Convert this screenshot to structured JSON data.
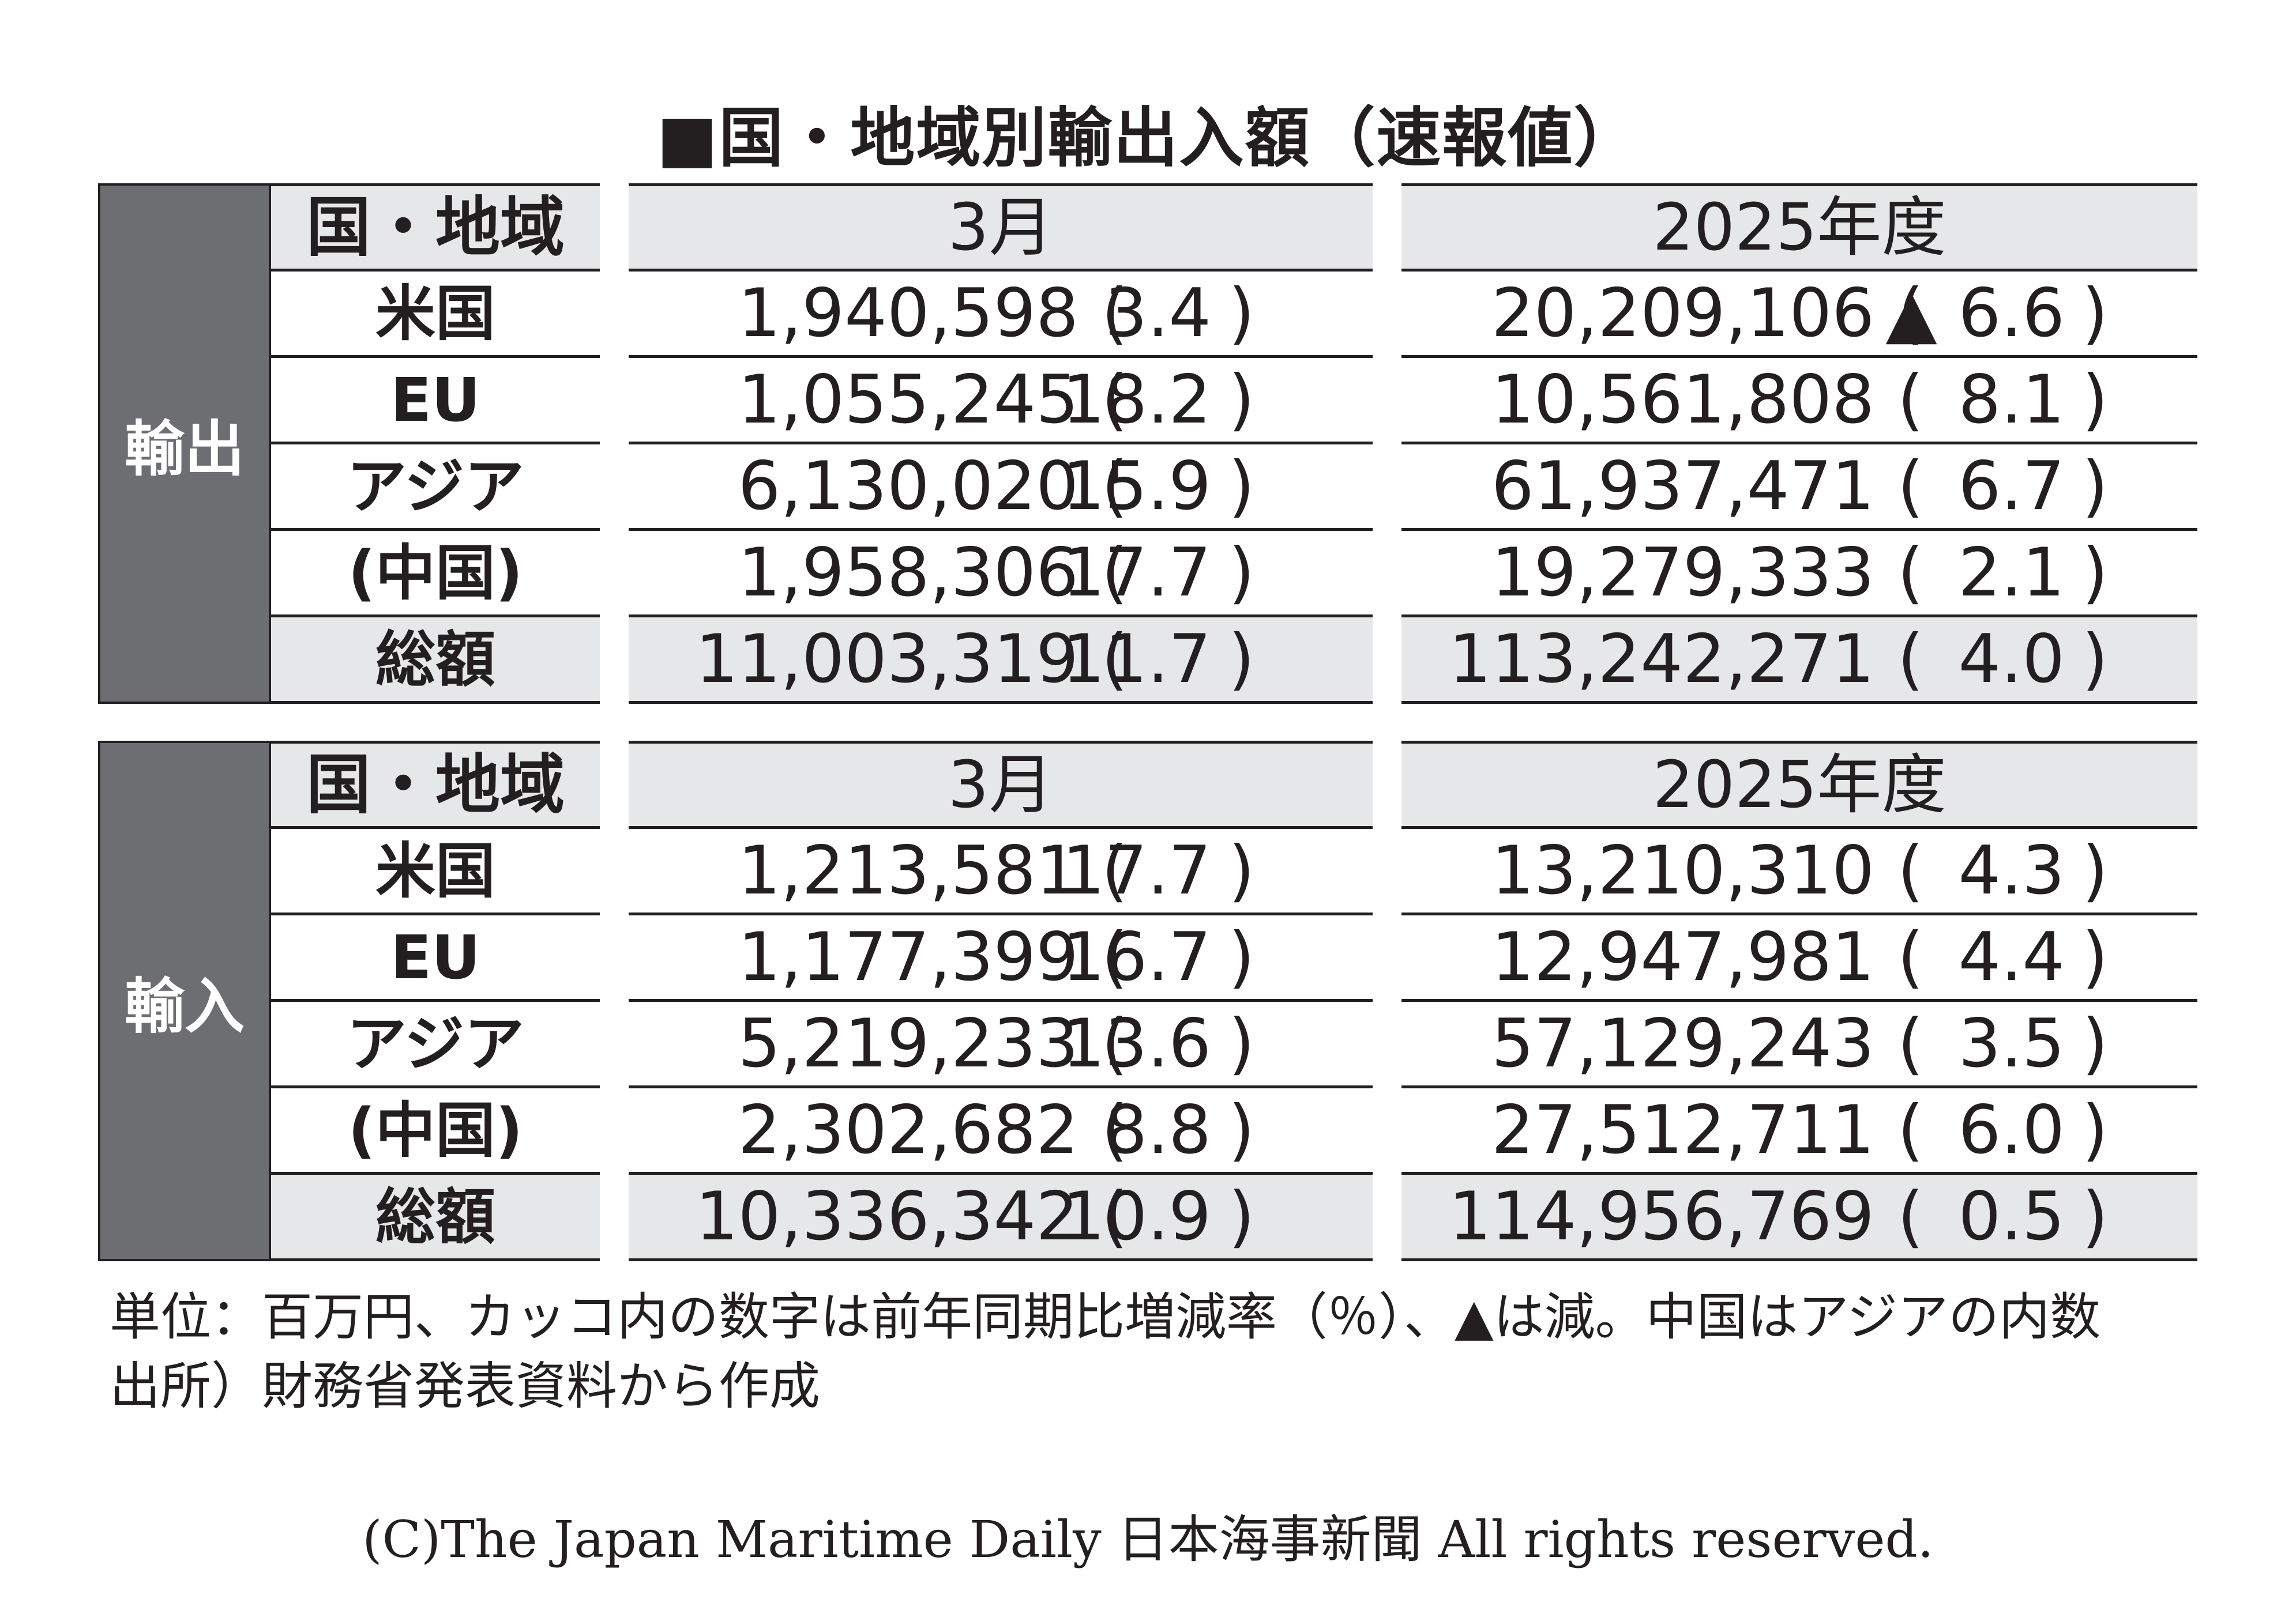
{
  "title": "■国・地域別輸出入額（速報値）",
  "chart_data": {
    "type": "table",
    "title": "国・地域別輸出入額（速報値）",
    "columns": [
      "国・地域",
      "3月",
      "2025年度"
    ],
    "sections": [
      {
        "label": "輸出",
        "header": {
          "region": "国・地域",
          "march": "3月",
          "fy": "2025年度"
        },
        "rows": [
          {
            "region": "米国",
            "march_value": "1,940,598",
            "march_rate": "3.4",
            "fy_value": "20,209,106",
            "fy_rate": "▲ 6.6"
          },
          {
            "region": "EU",
            "march_value": "1,055,245",
            "march_rate": "18.2",
            "fy_value": "10,561,808",
            "fy_rate": "8.1"
          },
          {
            "region": "アジア",
            "march_value": "6,130,020",
            "march_rate": "15.9",
            "fy_value": "61,937,471",
            "fy_rate": "6.7"
          },
          {
            "region": "(中国)",
            "march_value": "1,958,306",
            "march_rate": "17.7",
            "fy_value": "19,279,333",
            "fy_rate": "2.1"
          },
          {
            "region": "総額",
            "march_value": "11,003,319",
            "march_rate": "11.7",
            "fy_value": "113,242,271",
            "fy_rate": "4.0"
          }
        ]
      },
      {
        "label": "輸入",
        "header": {
          "region": "国・地域",
          "march": "3月",
          "fy": "2025年度"
        },
        "rows": [
          {
            "region": "米国",
            "march_value": "1,213,581",
            "march_rate": "17.7",
            "fy_value": "13,210,310",
            "fy_rate": "4.3"
          },
          {
            "region": "EU",
            "march_value": "1,177,399",
            "march_rate": "16.7",
            "fy_value": "12,947,981",
            "fy_rate": "4.4"
          },
          {
            "region": "アジア",
            "march_value": "5,219,233",
            "march_rate": "13.6",
            "fy_value": "57,129,243",
            "fy_rate": "3.5"
          },
          {
            "region": "(中国)",
            "march_value": "2,302,682",
            "march_rate": "8.8",
            "fy_value": "27,512,711",
            "fy_rate": "6.0"
          },
          {
            "region": "総額",
            "march_value": "10,336,342",
            "march_rate": "10.9",
            "fy_value": "114,956,769",
            "fy_rate": "0.5"
          }
        ]
      }
    ],
    "paren_open": "(",
    "paren_close": ")"
  },
  "notes": {
    "unit": "単位：百万円、カッコ内の数字は前年同期比増減率（％）、▲は減。中国はアジアの内数",
    "source": "出所）財務省発表資料から作成"
  },
  "copyright": "(C)The Japan Maritime Daily 日本海事新聞 All rights reserved."
}
